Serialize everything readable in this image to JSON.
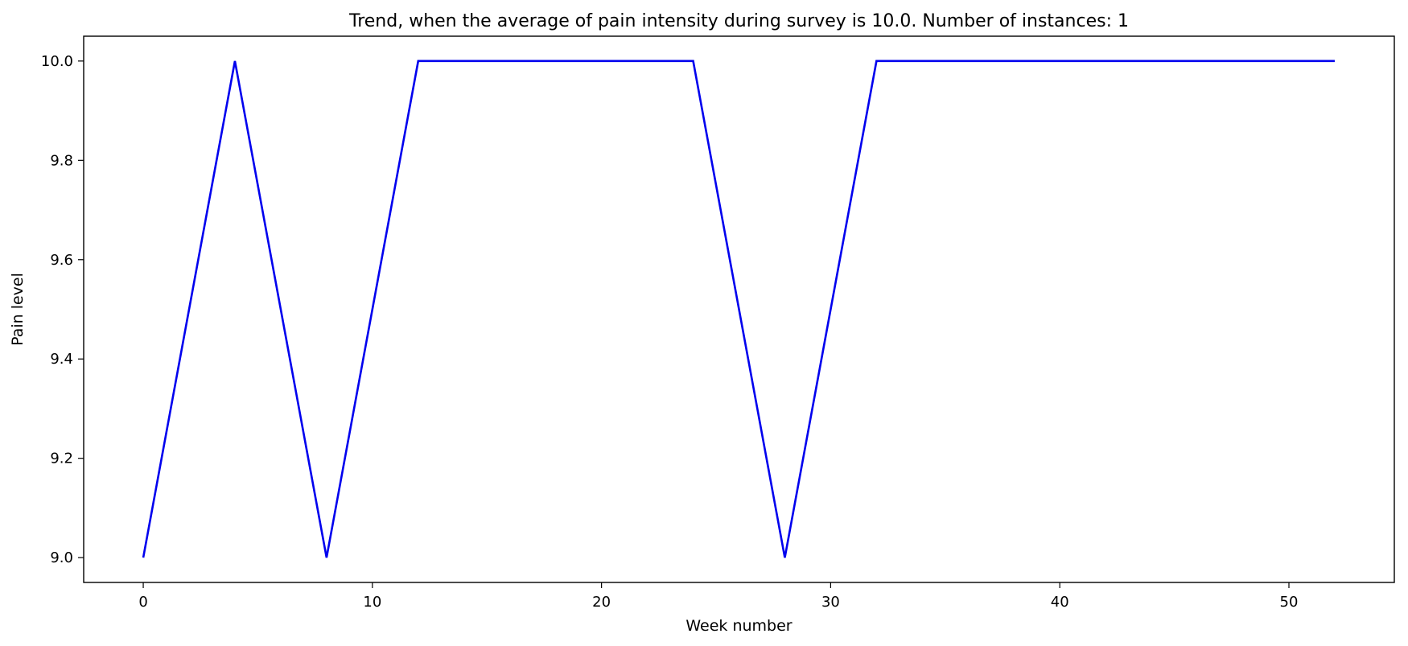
{
  "chart_data": {
    "type": "line",
    "title": "Trend, when the average of pain intensity during survey is 10.0. Number of instances: 1",
    "xlabel": "Week number",
    "ylabel": "Pain level",
    "xlim": [
      -2.6,
      54.6
    ],
    "ylim": [
      8.95,
      10.05
    ],
    "x_ticks": [
      0,
      10,
      20,
      30,
      40,
      50
    ],
    "x_tick_labels": [
      "0",
      "10",
      "20",
      "30",
      "40",
      "50"
    ],
    "y_ticks": [
      9.0,
      9.2,
      9.4,
      9.6,
      9.8,
      10.0
    ],
    "y_tick_labels": [
      "9.0",
      "9.2",
      "9.4",
      "9.6",
      "9.8",
      "10.0"
    ],
    "grid": false,
    "series": [
      {
        "color": "#0000ee",
        "points": [
          {
            "x": 0,
            "y": 9.0
          },
          {
            "x": 4,
            "y": 10.0
          },
          {
            "x": 8,
            "y": 9.0
          },
          {
            "x": 12,
            "y": 10.0
          },
          {
            "x": 16,
            "y": 10.0
          },
          {
            "x": 20,
            "y": 10.0
          },
          {
            "x": 24,
            "y": 10.0
          },
          {
            "x": 28,
            "y": 9.0
          },
          {
            "x": 32,
            "y": 10.0
          },
          {
            "x": 36,
            "y": 10.0
          },
          {
            "x": 40,
            "y": 10.0
          },
          {
            "x": 44,
            "y": 10.0
          },
          {
            "x": 48,
            "y": 10.0
          },
          {
            "x": 52,
            "y": 10.0
          }
        ]
      }
    ]
  }
}
